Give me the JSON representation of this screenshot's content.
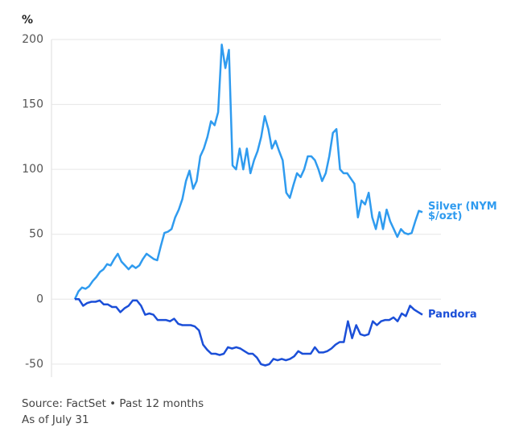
{
  "chart_data": {
    "type": "line",
    "ylabel": "%",
    "ylim": [
      -60,
      200
    ],
    "yticks": [
      -50,
      0,
      50,
      100,
      150,
      200
    ],
    "grid": true,
    "series": [
      {
        "name": "Silver (NYM $/ozt)",
        "color": "#2f9bef",
        "values": [
          0,
          6,
          9,
          8,
          10,
          14,
          17,
          21,
          23,
          27,
          26,
          31,
          35,
          29,
          26,
          23,
          26,
          24,
          26,
          31,
          35,
          33,
          31,
          30,
          41,
          51,
          52,
          54,
          63,
          69,
          77,
          91,
          99,
          85,
          91,
          110,
          116,
          125,
          137,
          134,
          144,
          196,
          178,
          192,
          103,
          100,
          116,
          100,
          116,
          97,
          107,
          114,
          125,
          141,
          131,
          116,
          122,
          114,
          107,
          82,
          78,
          88,
          97,
          94,
          100,
          110,
          110,
          107,
          100,
          91,
          97,
          110,
          128,
          131,
          100,
          97,
          97,
          93,
          89,
          63,
          76,
          73,
          82,
          63,
          54,
          67,
          54,
          69,
          60,
          54,
          48,
          54,
          51,
          50,
          51,
          60,
          68,
          67
        ]
      },
      {
        "name": "Pandora",
        "color": "#1b4fd8",
        "values": [
          0,
          0,
          -5,
          -3,
          -2,
          -2,
          -1,
          -4,
          -4,
          -6,
          -6,
          -10,
          -7,
          -5,
          -1,
          -1,
          -5,
          -12,
          -11,
          -12,
          -16,
          -16,
          -16,
          -17,
          -15,
          -19,
          -20,
          -20,
          -20,
          -21,
          -24,
          -35,
          -39,
          -42,
          -42,
          -43,
          -42,
          -37,
          -38,
          -37,
          -38,
          -40,
          -42,
          -42,
          -45,
          -50,
          -51,
          -50,
          -46,
          -47,
          -46,
          -47,
          -46,
          -44,
          -40,
          -42,
          -42,
          -42,
          -37,
          -41,
          -41,
          -40,
          -38,
          -35,
          -33,
          -33,
          -17,
          -30,
          -20,
          -27,
          -28,
          -27,
          -17,
          -20,
          -17,
          -16,
          -16,
          -14,
          -17,
          -11,
          -13,
          -5,
          -8,
          -10,
          -12
        ]
      }
    ],
    "notes": [
      "Source: FactSet • Past 12 months",
      "As of July 31"
    ]
  }
}
